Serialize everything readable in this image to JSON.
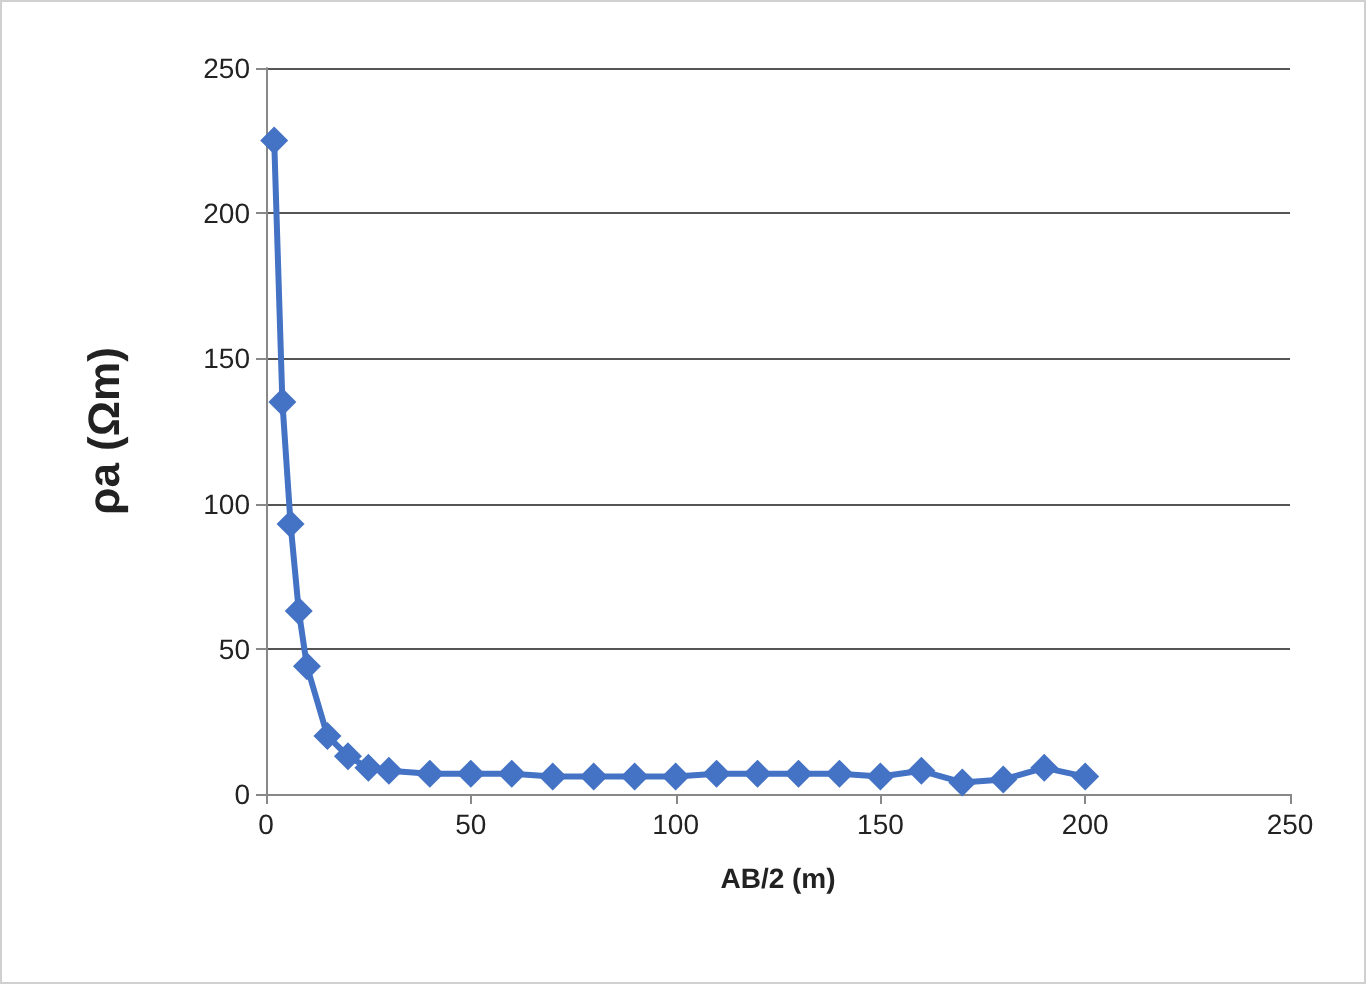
{
  "chart_data": {
    "type": "line",
    "xlabel": "AB/2 (m)",
    "ylabel": "ρa (Ωm)",
    "x": [
      2,
      4,
      6,
      8,
      10,
      15,
      20,
      25,
      30,
      40,
      50,
      60,
      70,
      80,
      90,
      100,
      110,
      120,
      130,
      140,
      150,
      160,
      170,
      180,
      190,
      200
    ],
    "series": [
      {
        "color": "#4472c4",
        "values": [
          225,
          135,
          93,
          63,
          44,
          20,
          13,
          9,
          8,
          7,
          7,
          7,
          6,
          6,
          6,
          6,
          7,
          7,
          7,
          7,
          6,
          8,
          4,
          5,
          9,
          6
        ]
      }
    ],
    "xlim": [
      0,
      250
    ],
    "xticks": [
      0,
      50,
      100,
      150,
      200,
      250
    ],
    "ylim": [
      0,
      250
    ],
    "yticks": [
      0,
      50,
      100,
      150,
      200,
      250
    ],
    "grid": "y",
    "marker": "diamond",
    "line_style": "solid"
  }
}
